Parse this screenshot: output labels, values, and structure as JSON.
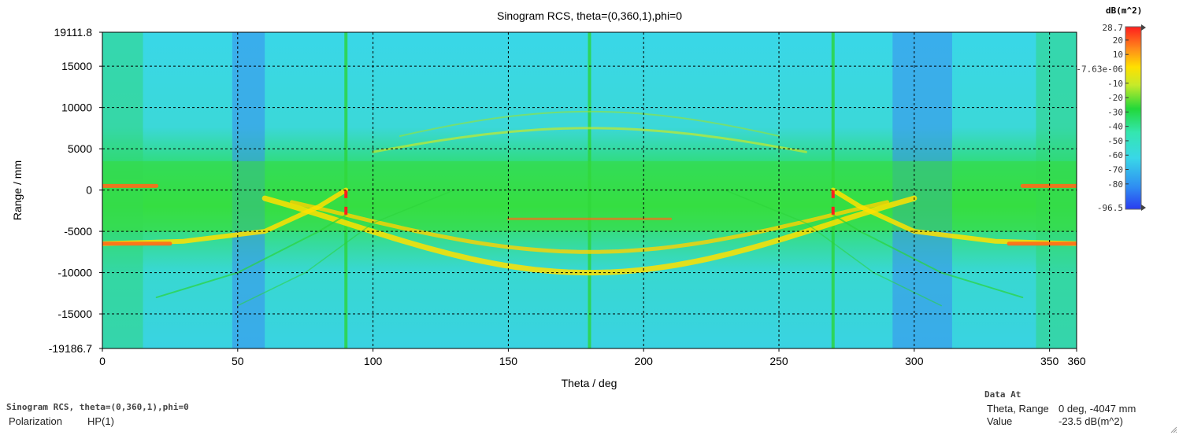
{
  "chart_data": {
    "type": "heatmap",
    "title": "Sinogram RCS, theta=(0,360,1),phi=0",
    "xlabel": "Theta / deg",
    "ylabel": "Range / mm",
    "xlim": [
      0,
      360
    ],
    "ylim": [
      -19186.7,
      19111.8
    ],
    "x_ticks": [
      0,
      50,
      100,
      150,
      200,
      250,
      300,
      350,
      360
    ],
    "x_tick_labels": [
      "0",
      "50",
      "100",
      "150",
      "200",
      "250",
      "300",
      "350",
      "360"
    ],
    "y_ticks": [
      19111.8,
      15000,
      10000,
      5000,
      0,
      -5000,
      -10000,
      -15000,
      -19186.7
    ],
    "y_tick_labels": [
      "19111.8",
      "15000",
      "10000",
      "5000",
      "0",
      "-5000",
      "-10000",
      "-15000",
      "-19186.7"
    ],
    "grid": true,
    "colorbar": {
      "unit": "dB(m^2)",
      "max_label": "28.7",
      "min_label": "-96.5",
      "mid_label": "-7.63e-06",
      "max": 28.7,
      "min": -96.5,
      "ticks": [
        20,
        10,
        -10,
        -20,
        -30,
        -40,
        -50,
        -60,
        -70,
        -80
      ],
      "tick_labels": [
        "20",
        "10",
        "-10",
        "-20",
        "-30",
        "-40",
        "-50",
        "-60",
        "-70",
        "-80"
      ],
      "colors": [
        "#2a3cf0",
        "#2f8cf2",
        "#39d7e8",
        "#34e6b0",
        "#22d83a",
        "#c6ea2a",
        "#ffe000",
        "#ff8a1a",
        "#ff1e1e"
      ]
    }
  },
  "info": {
    "title": "Sinogram RCS, theta=(0,360,1),phi=0",
    "polarization_label": "Polarization",
    "polarization_value": "HP(1)"
  },
  "data_at": {
    "title": "Data At",
    "theta_range_label": "Theta, Range",
    "theta_range_value": "0 deg, -4047 mm",
    "value_label": "Value",
    "value_value": "-23.5 dB(m^2)"
  }
}
